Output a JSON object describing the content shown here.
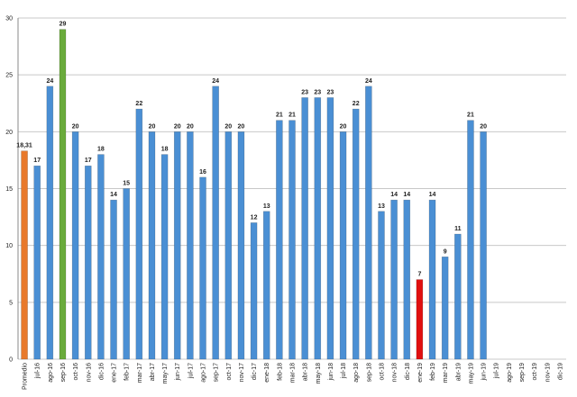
{
  "chart_data": {
    "type": "bar",
    "categories": [
      "Promedio",
      "jul-16",
      "ago-16",
      "sep-16",
      "oct-16",
      "nov-16",
      "dic-16",
      "ene-17",
      "feb-17",
      "mar-17",
      "abr-17",
      "may-17",
      "jun-17",
      "jul-17",
      "ago-17",
      "sep-17",
      "oct-17",
      "nov-17",
      "dic-17",
      "ene-18",
      "feb-18",
      "mar-18",
      "abr-18",
      "may-18",
      "jun-18",
      "jul-18",
      "ago-18",
      "sep-18",
      "oct-18",
      "nov-18",
      "dic-18",
      "ene-19",
      "feb-19",
      "mar-19",
      "abr-19",
      "may-19",
      "jun-19",
      "jul-19",
      "ago-19",
      "sep-19",
      "oct-19",
      "nov-19",
      "dic-19"
    ],
    "values": [
      18.31,
      17,
      24,
      29,
      20,
      17,
      18,
      14,
      15,
      22,
      20,
      18,
      20,
      20,
      16,
      24,
      20,
      20,
      12,
      13,
      21,
      21,
      23,
      23,
      23,
      20,
      22,
      24,
      13,
      14,
      14,
      7,
      14,
      9,
      11,
      21,
      20,
      null,
      null,
      null,
      null,
      null,
      null
    ],
    "value_labels": {
      "0": "18,31"
    },
    "colors": [
      "#e8792b",
      "#4a8fd4",
      "#4a8fd4",
      "#6aab3c",
      "#4a8fd4",
      "#4a8fd4",
      "#4a8fd4",
      "#4a8fd4",
      "#4a8fd4",
      "#4a8fd4",
      "#4a8fd4",
      "#4a8fd4",
      "#4a8fd4",
      "#4a8fd4",
      "#4a8fd4",
      "#4a8fd4",
      "#4a8fd4",
      "#4a8fd4",
      "#4a8fd4",
      "#4a8fd4",
      "#4a8fd4",
      "#4a8fd4",
      "#4a8fd4",
      "#4a8fd4",
      "#4a8fd4",
      "#4a8fd4",
      "#4a8fd4",
      "#4a8fd4",
      "#4a8fd4",
      "#4a8fd4",
      "#4a8fd4",
      "#e01010",
      "#4a8fd4",
      "#4a8fd4",
      "#4a8fd4",
      "#4a8fd4",
      "#4a8fd4",
      "#4a8fd4",
      "#4a8fd4",
      "#4a8fd4",
      "#4a8fd4",
      "#4a8fd4",
      "#4a8fd4"
    ],
    "ylim": [
      0,
      30
    ],
    "yticks": [
      0,
      5,
      10,
      15,
      20,
      25,
      30
    ],
    "grid": true
  }
}
